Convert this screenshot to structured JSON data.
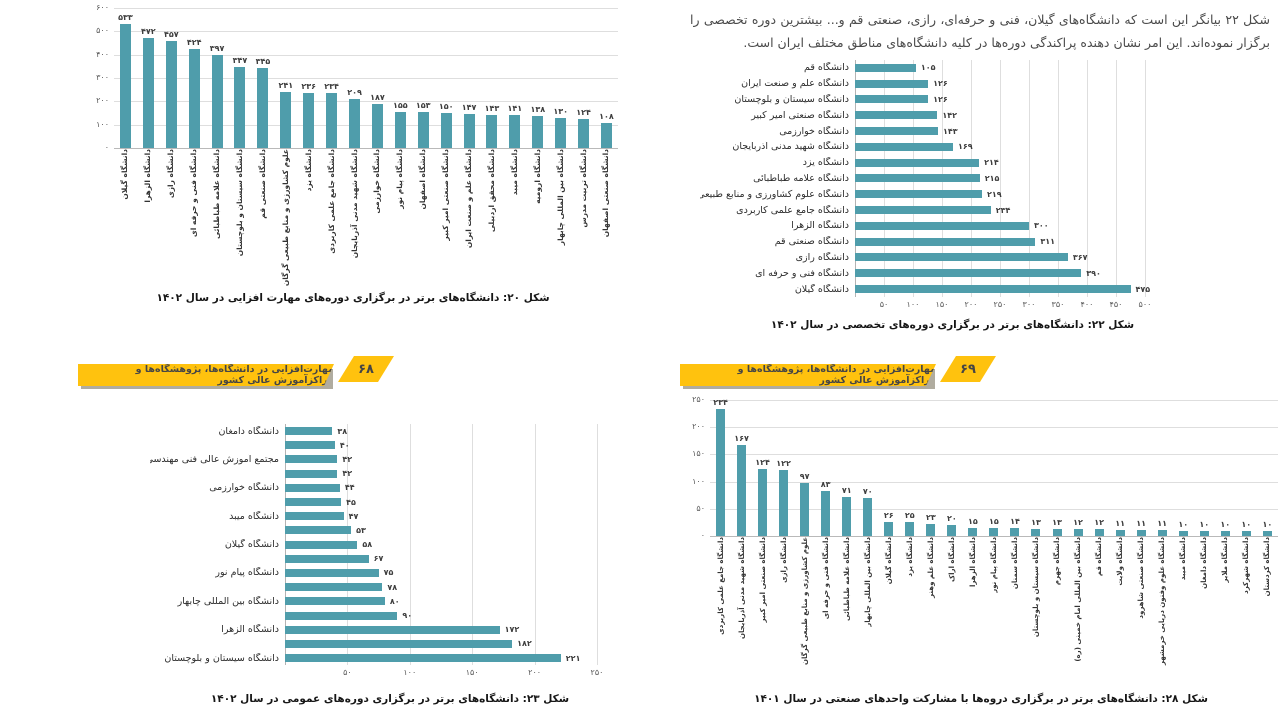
{
  "document": {
    "banner_text": "مهارت‌افزایی در دانشگاه‌ها، پژوهشگاه‌ها و مراکزآموزش عالی کشور",
    "page_left_number": "۶۸",
    "page_right_number": "۶۹",
    "intro_paragraph": "شکل ۲۲ بیانگر این است که دانشگاه‌های گیلان، فنی و حرفه‌ای، رازی، صنعتی قم و... بیشترین دوره تخصصی را برگزار نموده‌اند. این امر نشان دهنده پراکندگی دوره‌ها در کلیه دانشگاه‌های مناطق مختلف ایران است."
  },
  "colors": {
    "bar_teal": "#4f9dab",
    "banner_yellow": "#ffc20e",
    "gridline": "#dedede",
    "axis": "#b9b9b9"
  },
  "chart_data": [
    {
      "type": "bar",
      "caption": "شکل ۲۰: دانشگاه‌های برتر در برگزاری دوره‌های مهارت افزایی در سال ۱۴۰۲",
      "categories": [
        "دانشگاه گیلان",
        "دانشگاه الزهرا",
        "دانشگاه رازی",
        "دانشگاه فنی و حرفه ای",
        "دانشگاه علامه طباطبائی",
        "دانشگاه سیستان و بلوچستان",
        "دانشگاه صنعتی قم",
        "علوم کشاورزی و منابع طبیعی گرگان",
        "دانشگاه یزد",
        "دانشگاه جامع علمی کاربردی",
        "دانشگاه شهید مدنی آذربایجان",
        "دانشگاه خوارزمی",
        "دانشگاه پیام نور",
        "دانشگاه اصفهان",
        "دانشگاه صنعتی امیر کبیر",
        "دانشگاه علم و صنعت ایران",
        "دانشگاه محقق اردبیلی",
        "دانشگاه میبد",
        "دانشگاه ارومیه",
        "دانشگاه بین المللی چابهار",
        "دانشگاه تربیت مدرس",
        "دانشگاه صنعتی اصفهان"
      ],
      "values": [
        533,
        472,
        457,
        424,
        397,
        347,
        345,
        241,
        236,
        234,
        209,
        187,
        155,
        153,
        150,
        147,
        143,
        141,
        138,
        130,
        124,
        108
      ],
      "ylim": [
        0,
        600
      ],
      "yticks": [
        0,
        100,
        200,
        300,
        400,
        500,
        600
      ],
      "grid": true
    },
    {
      "type": "barh",
      "caption": "شکل ۲۲: دانشگاه‌های برتر در برگزاری دوره‌های تخصصی در سال ۱۴۰۲",
      "categories": [
        "دانشگاه قم",
        "دانشگاه علم و صنعت ایران",
        "دانشگاه سیستان و بلوچستان",
        "دانشگاه صنعتی امیر کبیر",
        "دانشگاه خوارزمی",
        "دانشگاه شهید مدنی آذربایجان",
        "دانشگاه یزد",
        "دانشگاه علامه طباطبائی",
        "دانشگاه علوم کشاورزی و منابع طبیعی گرگان",
        "دانشگاه جامع علمی کاربردی",
        "دانشگاه الزهرا",
        "دانشگاه صنعتی قم",
        "دانشگاه رازی",
        "دانشگاه فنی و حرفه ای",
        "دانشگاه گیلان"
      ],
      "values": [
        105,
        126,
        126,
        142,
        143,
        169,
        214,
        215,
        219,
        234,
        300,
        311,
        367,
        390,
        475
      ],
      "xlim": [
        0,
        500
      ],
      "xticks": [
        50,
        100,
        150,
        200,
        250,
        300,
        350,
        400,
        450,
        500
      ],
      "grid": true
    },
    {
      "type": "barh",
      "caption": "شکل ۲۳: دانشگاه‌های برتر در برگزاری دوره‌های عمومی در سال ۱۴۰۲",
      "categories": [
        "دانشگاه دامغان",
        "",
        "مجتمع آموزش عالی فنی مهندسی اسفراین",
        "",
        "دانشگاه خوارزمی",
        "",
        "دانشگاه میبد",
        "",
        "دانشگاه گیلان",
        "",
        "دانشگاه پیام نور",
        "",
        "دانشگاه بین المللی چابهار",
        "",
        "دانشگاه الزهرا",
        "",
        "دانشگاه سیستان و بلوچستان"
      ],
      "values": [
        38,
        40,
        42,
        42,
        44,
        45,
        47,
        53,
        58,
        67,
        75,
        78,
        80,
        90,
        172,
        182,
        221
      ],
      "xlim": [
        0,
        250
      ],
      "xticks": [
        50,
        100,
        150,
        200,
        250
      ],
      "grid": true
    },
    {
      "type": "bar",
      "caption": "شکل ۲۸: دانشگاه‌های برتر در برگزاری دروه‌ها با مشارکت واحدهای صنعتی در سال ۱۴۰۱",
      "categories": [
        "دانشگاه جامع علمی کاربردی",
        "دانشگاه شهید مدنی آذربایجان",
        "دانشگاه صنعتی امیر کبیر",
        "دانشگاه رازی",
        "علوم کشاورزی و منابع طبیعی گرگان",
        "دانشگاه فنی و حرفه ای",
        "دانشگاه علامه طباطبائی",
        "دانشگاه بین المللی چابهار",
        "دانشگاه گیلان",
        "دانشگاه یزد",
        "دانشگاه علم وهنر",
        "دانشگاه اراک",
        "دانشگاه الزهرا",
        "دانشگاه پیام نور",
        "دانشگاه سمنان",
        "دانشگاه سیستان و بلوچستان",
        "دانشگاه جهرم",
        "دانشگاه بین المللی امام خمینی (ره)",
        "دانشگاه قم",
        "دانشگاه ولایت",
        "دانشگاه صنعتی شاهرود",
        "دانشگاه علوم وفنون دریایی خرمشهر",
        "دانشگاه میبد",
        "دانشگاه دامغان",
        "دانشگاه ملایر",
        "دانشگاه شهرکرد",
        "دانشگاه کردستان"
      ],
      "values": [
        234,
        167,
        124,
        122,
        97,
        83,
        71,
        70,
        26,
        25,
        23,
        20,
        15,
        15,
        14,
        13,
        13,
        12,
        12,
        11,
        11,
        11,
        10,
        10,
        10,
        10,
        10
      ],
      "ylim": [
        0,
        250
      ],
      "yticks": [
        0,
        50,
        100,
        150,
        200,
        250
      ],
      "grid": true
    }
  ]
}
